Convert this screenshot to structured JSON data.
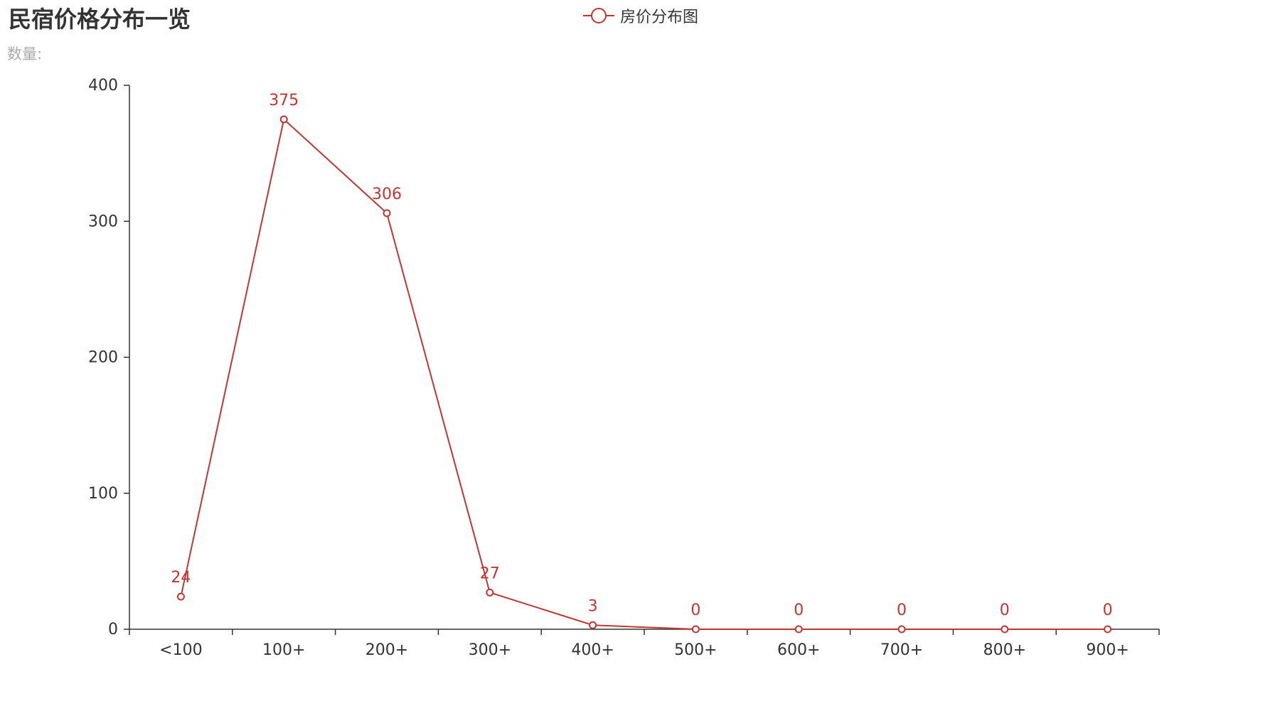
{
  "chart_data": {
    "type": "line",
    "title": "民宿价格分布一览",
    "subtitle": "数量:",
    "categories": [
      "<100",
      "100+",
      "200+",
      "300+",
      "400+",
      "500+",
      "600+",
      "700+",
      "800+",
      "900+"
    ],
    "series": [
      {
        "name": "房价分布图",
        "values": [
          24,
          375,
          306,
          27,
          3,
          0,
          0,
          0,
          0,
          0
        ],
        "color": "#c23531"
      }
    ],
    "ylim": [
      0,
      400
    ],
    "yticks": [
      0,
      100,
      200,
      300,
      400
    ],
    "grid": false,
    "legend": "top-center",
    "xlabel": "",
    "ylabel": ""
  }
}
